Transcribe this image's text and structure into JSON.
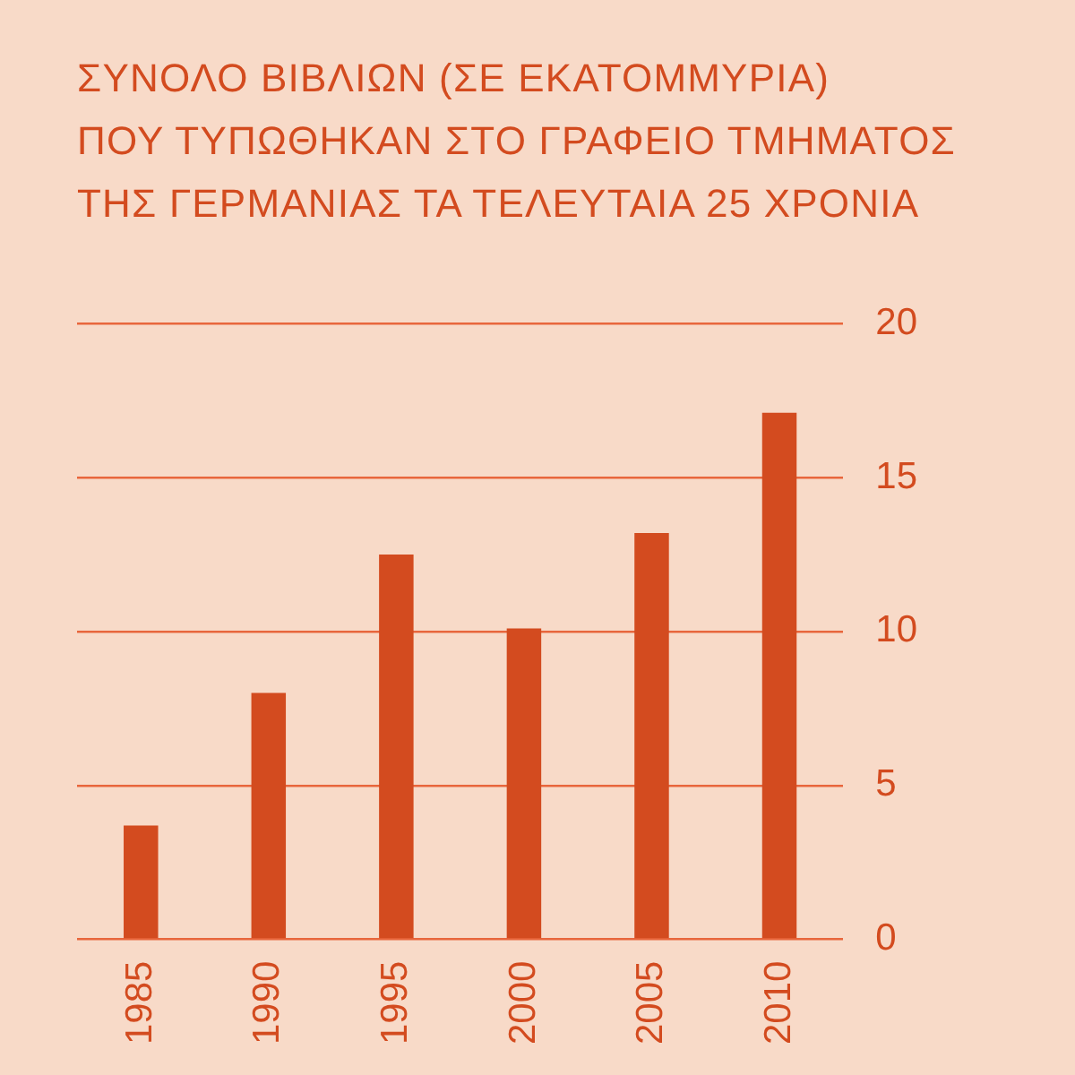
{
  "chart_data": {
    "type": "bar",
    "title": "ΣΥΝΟΛΟ ΒΙΒΛΙΩΝ (ΣΕ ΕΚΑΤΟΜΜΥΡΙΑ)\nΠΟΥ ΤΥΠΩΘΗΚΑΝ ΣΤΟ ΓΡΑΦΕΙΟ ΤΜΗΜΑΤΟΣ\nΤΗΣ ΓΕΡΜΑΝΙΑΣ ΤΑ ΤΕΛΕΥΤΑΙΑ 25 ΧΡΟΝΙΑ",
    "categories": [
      "1985",
      "1990",
      "1995",
      "2000",
      "2005",
      "2010"
    ],
    "values": [
      3.7,
      8.0,
      12.5,
      10.1,
      13.2,
      17.1
    ],
    "color": "#d34b1f",
    "ylim": [
      0,
      20
    ],
    "yticks": [
      0,
      5,
      10,
      15,
      20
    ],
    "grid": "y"
  }
}
